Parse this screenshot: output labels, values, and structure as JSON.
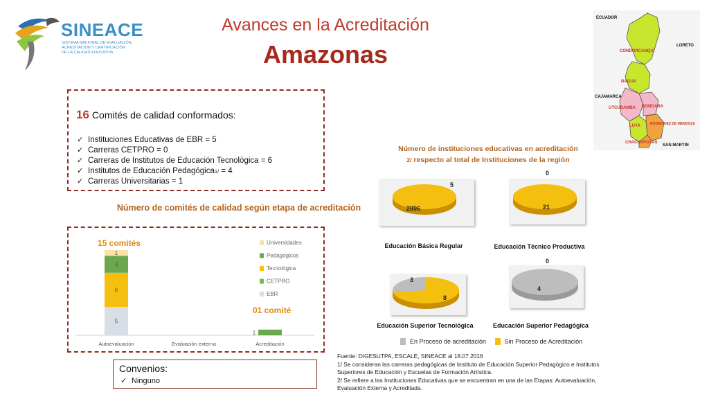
{
  "brand": {
    "name": "SINEACE",
    "subtitle_lines": [
      "Sistema Nacional de Evaluación,",
      "Acreditación y Certificación",
      "de la Calidad Educativa"
    ]
  },
  "header": {
    "title": "Avances en la Acreditación",
    "region": "Amazonas"
  },
  "map": {
    "labels": [
      "ECUADOR",
      "LORETO",
      "CONDORCANQUI",
      "BAGUA",
      "CAJAMARCA",
      "UTCUBAMBA",
      "BONGARA",
      "LUYA",
      "RODRIGUEZ DE MENDOZA",
      "CHACHAPOYAS",
      "SAN MARTIN"
    ],
    "colors": {
      "province_green": "#c9e62f",
      "province_orange": "#f2a23a",
      "province_pink": "#f4b8c8",
      "border": "#555555"
    }
  },
  "committees": {
    "count": "16",
    "heading": "Comités de calidad conformados:",
    "items": [
      "Instituciones Educativas de EBR = 5",
      "Carreras CETPRO = 0",
      "Carreras de Institutos  de Educación Tecnológica = 6",
      "Institutos de Educación Pedagógica",
      "Carreras Universitarias = 1"
    ],
    "item4_footnote": "1/",
    "item4_value": " = 4"
  },
  "stage_chart_title": "Número de comités de calidad según etapa de acreditación",
  "chart_data": [
    {
      "type": "bar",
      "stacked": true,
      "title": "Número de comités de calidad según etapa de acreditación",
      "categories": [
        "Autoevaluación",
        "Evaluación externa",
        "Acreditación"
      ],
      "series": [
        {
          "name": "EBR",
          "values": [
            5,
            0,
            0
          ],
          "color": "#d9dde6"
        },
        {
          "name": "CETPRO",
          "values": [
            0,
            0,
            0
          ],
          "color": "#6fbf4b"
        },
        {
          "name": "Tecnológica",
          "values": [
            6,
            0,
            0
          ],
          "color": "#f5bf0f"
        },
        {
          "name": "Pedagógicos",
          "values": [
            3,
            0,
            1
          ],
          "color": "#6aa84f"
        },
        {
          "name": "Universidades",
          "values": [
            1,
            0,
            0
          ],
          "color": "#f8e3a3"
        }
      ],
      "legend_order": [
        "Universidades",
        "Pedagógicos",
        "Tecnológica",
        "CETPRO",
        "EBR"
      ],
      "legend_position": "right",
      "annotations": [
        "15 comités",
        "01 comité"
      ],
      "ylim": [
        0,
        16
      ]
    },
    {
      "type": "pie",
      "title": "Educación Básica Regular",
      "labels": [
        "Sin Proceso de Acreditación",
        "En Proceso de acreditación"
      ],
      "values": [
        2896,
        5
      ]
    },
    {
      "type": "pie",
      "title": "Educación Técnico Productiva",
      "labels": [
        "Sin Proceso de Acreditación",
        "En Proceso de acreditación"
      ],
      "values": [
        21,
        0
      ]
    },
    {
      "type": "pie",
      "title": "Educación Superior Tecnológica",
      "labels": [
        "Sin Proceso de Acreditación",
        "En Proceso de acreditación"
      ],
      "values": [
        8,
        3
      ]
    },
    {
      "type": "pie",
      "title": "Educación Superior Pedagógica",
      "labels": [
        "Sin Proceso de Acreditación",
        "En Proceso de acreditación"
      ],
      "values": [
        0,
        4
      ]
    }
  ],
  "institutions": {
    "title_line1": "Número de instituciones educativas en acreditación",
    "title_footnote": "2/",
    "title_line2_rest": " respecto al total de Instituciones de la región",
    "pie_colors": {
      "in_process": "#bdbdbd",
      "no_process": "#f5bf0f"
    },
    "legend": {
      "in_process": "En Proceso de acreditación",
      "no_process": "Sin Proceso de Acreditación"
    }
  },
  "convenios": {
    "title": "Convenios:",
    "item": "Ninguno"
  },
  "notes": [
    "Fuente: DIGESUTPA, ESCALE, SINEACE al  18.07.2016",
    "1/ Se consideran las  carreras  pedagógicas  de Instituto de Educación Superior Pedagógico e Institutos Superiores de Educación y Escuelas de Formación Artística.",
    "2/ Se refiere a las Instituciones Educativas que se encuentran en una de las Etapas: Autoevaluación, Evaluación Externa y Acreditada."
  ]
}
